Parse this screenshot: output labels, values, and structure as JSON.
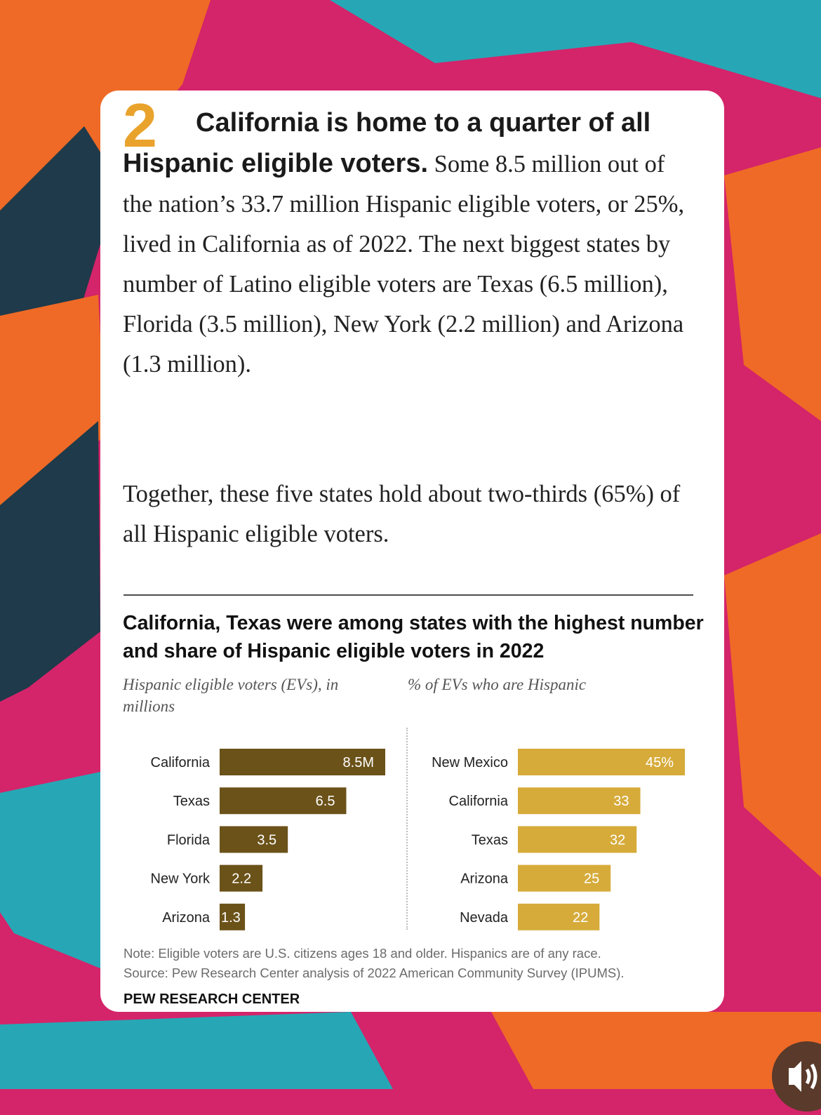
{
  "card": {
    "number": "2",
    "headline": "California is home to a quarter of all Hispanic eligible voters.",
    "body_lead": " Some 8.5 million out of the nation’s 33.7 million Hispanic eligible voters, or 25%, lived in California as of 2022. The next biggest states by number of Latino eligible voters are Texas (6.5 million), Florida (3.5 million), New York (2.2 million) and Arizona (1.3 million).",
    "body_second": "Together, these five states hold about two-thirds (65%) of all Hispanic eligible voters."
  },
  "chart_data": [
    {
      "type": "bar",
      "orientation": "horizontal",
      "title": "California, Texas were among states with the highest number and share of Hispanic eligible voters in 2022",
      "subtitle": "Hispanic eligible voters (EVs), in millions",
      "categories": [
        "California",
        "Texas",
        "Florida",
        "New York",
        "Arizona"
      ],
      "values": [
        8.5,
        6.5,
        3.5,
        2.2,
        1.3
      ],
      "value_labels": [
        "8.5M",
        "6.5",
        "3.5",
        "2.2",
        "1.3"
      ],
      "xlim": [
        0,
        8.5
      ],
      "color": "#6b5219",
      "grid": false
    },
    {
      "type": "bar",
      "orientation": "horizontal",
      "subtitle": "% of EVs who are Hispanic",
      "categories": [
        "New Mexico",
        "California",
        "Texas",
        "Arizona",
        "Nevada"
      ],
      "values": [
        45,
        33,
        32,
        25,
        22
      ],
      "value_labels": [
        "45%",
        "33",
        "32",
        "25",
        "22"
      ],
      "xlim": [
        0,
        45
      ],
      "color": "#d6ab3a",
      "grid": false
    }
  ],
  "footer": {
    "note": "Note: Eligible voters are U.S. citizens ages 18 and older. Hispanics are of any race.",
    "source": "Source: Pew Research Center analysis of 2022 American Community Survey (IPUMS).",
    "org": "PEW RESEARCH CENTER"
  },
  "controls": {
    "sound_icon": "speaker-icon"
  },
  "colors": {
    "accent_number": "#e9a32c",
    "background": "#d4246a"
  }
}
